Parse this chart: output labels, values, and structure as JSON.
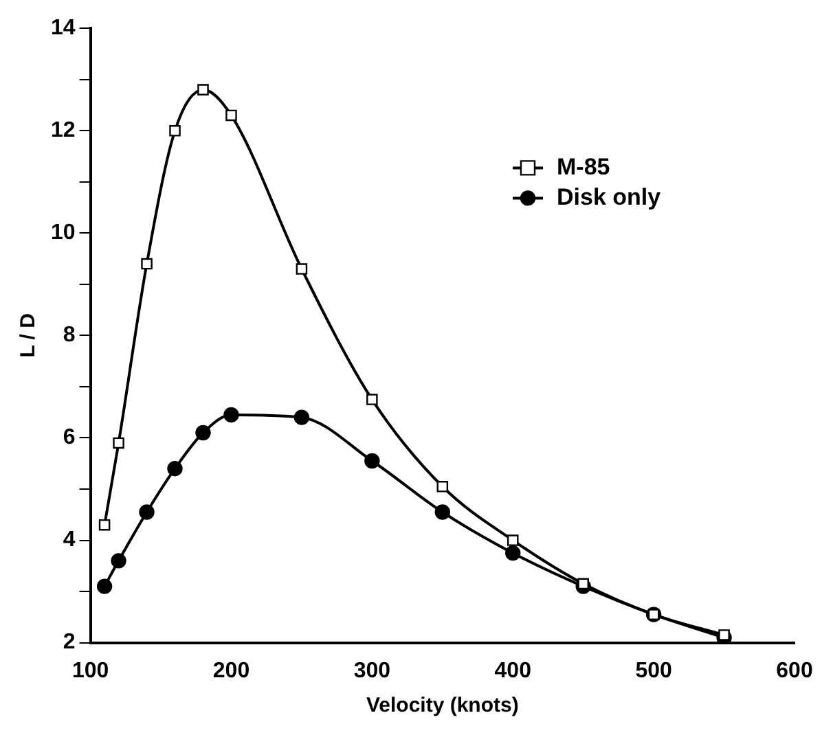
{
  "chart_data": {
    "type": "line",
    "xlabel": "Velocity (knots)",
    "ylabel": "L / D",
    "x": [
      110,
      120,
      140,
      160,
      180,
      200,
      250,
      300,
      350,
      400,
      450,
      500,
      550
    ],
    "series": [
      {
        "name": "M-85",
        "color": "#000000",
        "marker": "square",
        "values": [
          4.3,
          5.9,
          9.4,
          12.0,
          12.8,
          12.3,
          9.3,
          6.75,
          5.05,
          4.0,
          3.15,
          2.55,
          2.15
        ]
      },
      {
        "name": "Disk only",
        "color": "#000000",
        "marker": "circle",
        "values": [
          3.1,
          3.6,
          4.55,
          5.4,
          6.1,
          6.45,
          6.4,
          5.55,
          4.55,
          3.75,
          3.1,
          2.55,
          2.1
        ]
      }
    ],
    "xlim": [
      100,
      600
    ],
    "xticks": [
      100,
      200,
      300,
      400,
      500,
      600
    ],
    "ylim": [
      2,
      14
    ],
    "yticks": [
      2,
      {
        "value": 3,
        "label": null
      },
      4,
      {
        "value": 5,
        "label": null
      },
      6,
      {
        "value": 7,
        "label": null
      },
      8,
      {
        "value": 9,
        "label": null
      },
      10,
      {
        "value": 11,
        "label": null
      },
      12,
      {
        "value": 13,
        "label": null
      },
      14
    ],
    "grid": false,
    "legend": "right"
  }
}
